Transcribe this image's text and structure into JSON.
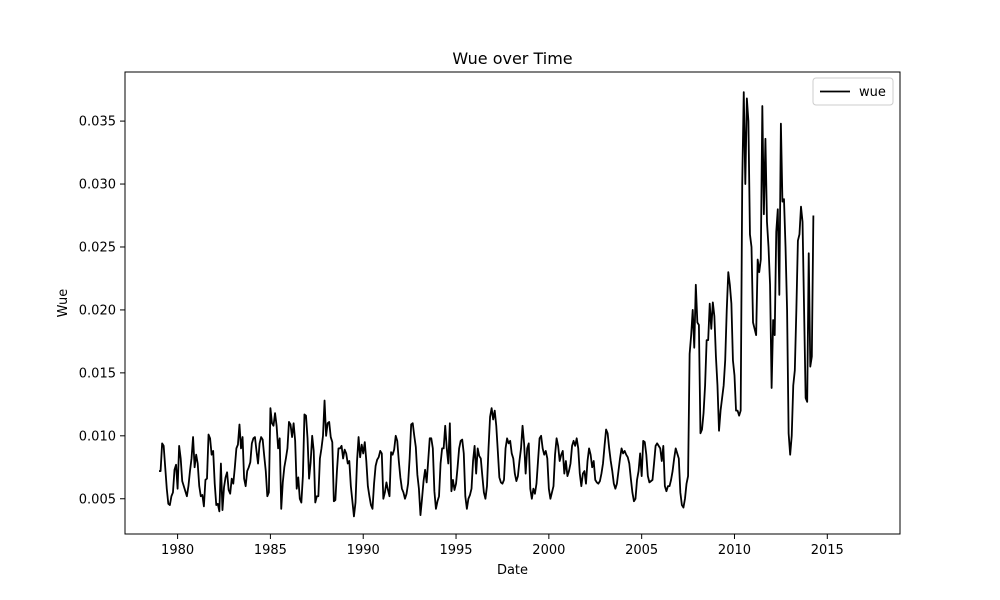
{
  "chart_data": {
    "type": "line",
    "title": "Wue over Time",
    "xlabel": "Date",
    "ylabel": "Wue",
    "xlim": [
      "1977-03-01",
      "2018-12-01"
    ],
    "ylim": [
      0.0022,
      0.0389
    ],
    "x_ticks": [
      "1980",
      "1985",
      "1990",
      "1995",
      "2000",
      "2005",
      "2010",
      "2015"
    ],
    "y_ticks": [
      "0.005",
      "0.010",
      "0.015",
      "0.020",
      "0.025",
      "0.030",
      "0.035"
    ],
    "grid": false,
    "legend": {
      "placement": "top-right",
      "entries": [
        "wue"
      ]
    },
    "series": [
      {
        "name": "wue",
        "color": "#000000",
        "start": "1979-01",
        "frequency": "monthly",
        "values": [
          0.0072,
          0.0072,
          0.0094,
          0.0092,
          0.0075,
          0.0058,
          0.0046,
          0.0045,
          0.0052,
          0.0055,
          0.0073,
          0.0077,
          0.0058,
          0.0092,
          0.0082,
          0.0064,
          0.006,
          0.0056,
          0.0052,
          0.006,
          0.0072,
          0.0082,
          0.0099,
          0.0075,
          0.0085,
          0.0078,
          0.006,
          0.0052,
          0.0053,
          0.0044,
          0.0065,
          0.0066,
          0.0101,
          0.0098,
          0.0085,
          0.0088,
          0.0062,
          0.0045,
          0.0046,
          0.004,
          0.0078,
          0.0041,
          0.0059,
          0.0067,
          0.0071,
          0.0057,
          0.0054,
          0.0066,
          0.0062,
          0.0075,
          0.009,
          0.0093,
          0.0109,
          0.009,
          0.0099,
          0.0066,
          0.006,
          0.0072,
          0.0075,
          0.0079,
          0.0094,
          0.0098,
          0.0099,
          0.0088,
          0.0078,
          0.0094,
          0.0099,
          0.0097,
          0.0084,
          0.0072,
          0.0052,
          0.0055,
          0.0122,
          0.011,
          0.0108,
          0.0118,
          0.0108,
          0.009,
          0.0098,
          0.0042,
          0.0063,
          0.0075,
          0.0082,
          0.009,
          0.0111,
          0.0109,
          0.0099,
          0.011,
          0.0096,
          0.0058,
          0.0067,
          0.005,
          0.0047,
          0.0068,
          0.0117,
          0.0116,
          0.0098,
          0.0066,
          0.0079,
          0.01,
          0.0088,
          0.0047,
          0.0052,
          0.0052,
          0.0082,
          0.009,
          0.01,
          0.0128,
          0.01,
          0.011,
          0.0111,
          0.0099,
          0.0095,
          0.0048,
          0.0049,
          0.0072,
          0.009,
          0.009,
          0.0092,
          0.0082,
          0.0089,
          0.0086,
          0.0078,
          0.008,
          0.006,
          0.0048,
          0.0036,
          0.0047,
          0.008,
          0.0099,
          0.0083,
          0.0093,
          0.0086,
          0.0095,
          0.008,
          0.006,
          0.0052,
          0.0045,
          0.0042,
          0.0062,
          0.0076,
          0.0081,
          0.0083,
          0.0088,
          0.0086,
          0.005,
          0.0055,
          0.0063,
          0.0057,
          0.0052,
          0.0087,
          0.0085,
          0.0089,
          0.01,
          0.0096,
          0.008,
          0.0067,
          0.0058,
          0.0055,
          0.005,
          0.0054,
          0.0062,
          0.0082,
          0.0109,
          0.011,
          0.01,
          0.0091,
          0.0069,
          0.0058,
          0.0037,
          0.005,
          0.0064,
          0.0073,
          0.0063,
          0.008,
          0.0098,
          0.0098,
          0.009,
          0.0056,
          0.0042,
          0.0048,
          0.0052,
          0.0078,
          0.009,
          0.009,
          0.0108,
          0.009,
          0.0078,
          0.011,
          0.0056,
          0.0065,
          0.0057,
          0.0062,
          0.0075,
          0.009,
          0.0096,
          0.0097,
          0.0086,
          0.0052,
          0.0042,
          0.005,
          0.0053,
          0.0058,
          0.008,
          0.0092,
          0.007,
          0.009,
          0.0084,
          0.0082,
          0.0068,
          0.0055,
          0.005,
          0.006,
          0.009,
          0.0115,
          0.0122,
          0.0113,
          0.012,
          0.0108,
          0.0088,
          0.0067,
          0.0063,
          0.0062,
          0.0065,
          0.009,
          0.0098,
          0.0094,
          0.0096,
          0.0086,
          0.0082,
          0.007,
          0.0064,
          0.0068,
          0.008,
          0.009,
          0.0108,
          0.0094,
          0.007,
          0.009,
          0.0094,
          0.0058,
          0.005,
          0.0058,
          0.0054,
          0.0062,
          0.008,
          0.0098,
          0.01,
          0.009,
          0.0085,
          0.0088,
          0.0082,
          0.0058,
          0.005,
          0.0055,
          0.006,
          0.0085,
          0.0098,
          0.0092,
          0.008,
          0.0085,
          0.0088,
          0.007,
          0.008,
          0.0068,
          0.0072,
          0.0078,
          0.0092,
          0.0096,
          0.0092,
          0.0098,
          0.009,
          0.007,
          0.006,
          0.007,
          0.0072,
          0.0062,
          0.008,
          0.009,
          0.0085,
          0.0075,
          0.008,
          0.0065,
          0.0063,
          0.0062,
          0.0064,
          0.007,
          0.0078,
          0.0092,
          0.0105,
          0.0102,
          0.009,
          0.008,
          0.0072,
          0.0062,
          0.0058,
          0.0062,
          0.0072,
          0.0082,
          0.009,
          0.0086,
          0.0088,
          0.0085,
          0.0083,
          0.0078,
          0.0066,
          0.0055,
          0.0048,
          0.005,
          0.0065,
          0.0072,
          0.0086,
          0.0068,
          0.0096,
          0.0095,
          0.0085,
          0.0068,
          0.0063,
          0.0064,
          0.0065,
          0.0078,
          0.0092,
          0.0094,
          0.0092,
          0.009,
          0.008,
          0.0092,
          0.006,
          0.0056,
          0.006,
          0.006,
          0.0065,
          0.0072,
          0.0082,
          0.009,
          0.0086,
          0.0082,
          0.0055,
          0.0045,
          0.0043,
          0.005,
          0.0062,
          0.0068,
          0.0165,
          0.018,
          0.02,
          0.017,
          0.022,
          0.019,
          0.0188,
          0.0102,
          0.0105,
          0.0118,
          0.014,
          0.0176,
          0.0176,
          0.0205,
          0.0185,
          0.0206,
          0.0195,
          0.0163,
          0.014,
          0.0104,
          0.012,
          0.013,
          0.014,
          0.016,
          0.02,
          0.023,
          0.022,
          0.0205,
          0.016,
          0.0148,
          0.012,
          0.012,
          0.0116,
          0.012,
          0.03,
          0.0373,
          0.03,
          0.0368,
          0.035,
          0.026,
          0.025,
          0.019,
          0.0185,
          0.018,
          0.024,
          0.023,
          0.024,
          0.0362,
          0.0276,
          0.0336,
          0.027,
          0.025,
          0.022,
          0.0138,
          0.0192,
          0.018,
          0.0262,
          0.028,
          0.0212,
          0.0348,
          0.0286,
          0.0288,
          0.025,
          0.02,
          0.0102,
          0.0085,
          0.01,
          0.014,
          0.0152,
          0.02,
          0.0255,
          0.026,
          0.0282,
          0.027,
          0.02,
          0.013,
          0.0127,
          0.0245,
          0.0155,
          0.0163,
          0.0275
        ]
      }
    ]
  }
}
